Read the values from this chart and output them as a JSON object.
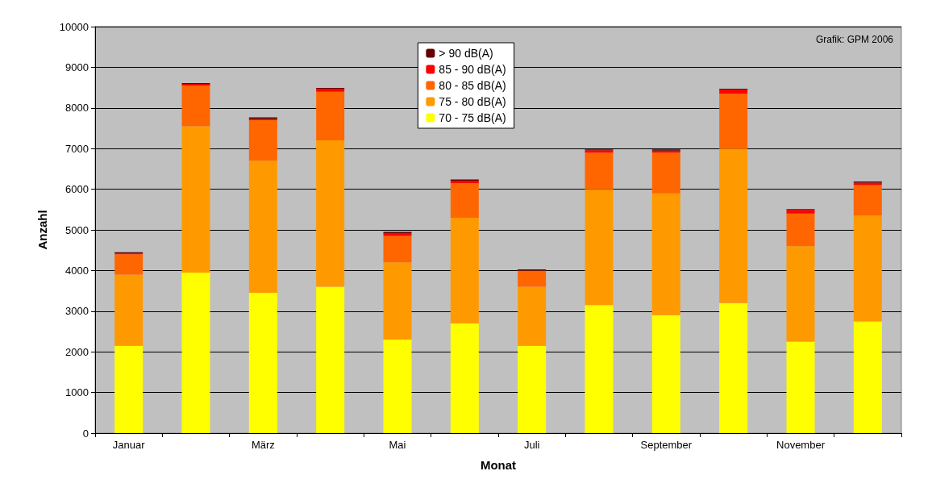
{
  "chart_data": {
    "type": "bar",
    "stacked": true,
    "xlabel": "Monat",
    "ylabel": "Anzahl",
    "categories": [
      "Januar",
      null,
      "März",
      null,
      "Mai",
      null,
      "Juli",
      null,
      "September",
      null,
      "November",
      null
    ],
    "series": [
      {
        "name": "70 - 75 dB(A)",
        "color": "#ffff00",
        "values": [
          2150,
          3950,
          3450,
          3600,
          2300,
          2700,
          2150,
          3150,
          2900,
          3200,
          2250,
          2750
        ]
      },
      {
        "name": "75 - 80 dB(A)",
        "color": "#ff9900",
        "values": [
          1750,
          3600,
          3250,
          3600,
          1900,
          2600,
          1450,
          2850,
          3000,
          3800,
          2350,
          2600
        ]
      },
      {
        "name": "80 - 85 dB(A)",
        "color": "#ff6600",
        "values": [
          500,
          1000,
          1000,
          1200,
          650,
          850,
          400,
          900,
          1000,
          1350,
          800,
          750
        ]
      },
      {
        "name": "85 - 90 dB(A)",
        "color": "#ff0000",
        "values": [
          20,
          40,
          30,
          70,
          70,
          60,
          null,
          60,
          50,
          100,
          90,
          60
        ]
      },
      {
        "name": "> 90 dB(A)",
        "color": "#660000",
        "values": [
          30,
          20,
          40,
          20,
          30,
          30,
          30,
          20,
          30,
          20,
          20,
          30
        ]
      }
    ],
    "ylim": [
      0,
      10000
    ],
    "yticks": [
      0,
      1000,
      2000,
      3000,
      4000,
      5000,
      6000,
      7000,
      8000,
      9000,
      10000
    ],
    "grid": "y",
    "legend": "top",
    "annotations": [
      "Grafik: GPM 2006"
    ]
  }
}
